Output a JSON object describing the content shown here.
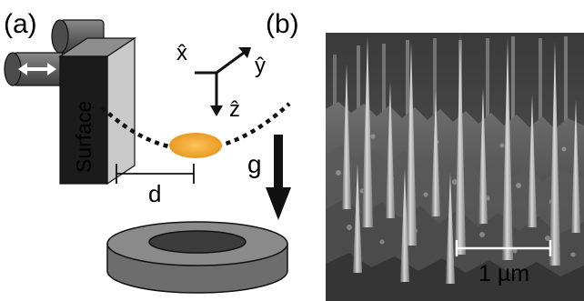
{
  "panel_a": {
    "label": "(a)",
    "surface_label": "Surface",
    "distance_label": "d",
    "gravity_label": "g",
    "axes": {
      "x_label": "x̂",
      "y_label": "ŷ",
      "z_label": "ẑ"
    }
  },
  "panel_b": {
    "label": "(b)",
    "scale_bar_label": "1 µm"
  },
  "colors": {
    "droplet": "#f0a93a",
    "surface_face": "#c9c9c9",
    "surface_edge": "#1b1b1b",
    "magnet_side": "#6d6d6d",
    "magnet_top": "#8a8a8a"
  },
  "icons": {
    "arrow_glyph": "double-arrow-icon"
  }
}
